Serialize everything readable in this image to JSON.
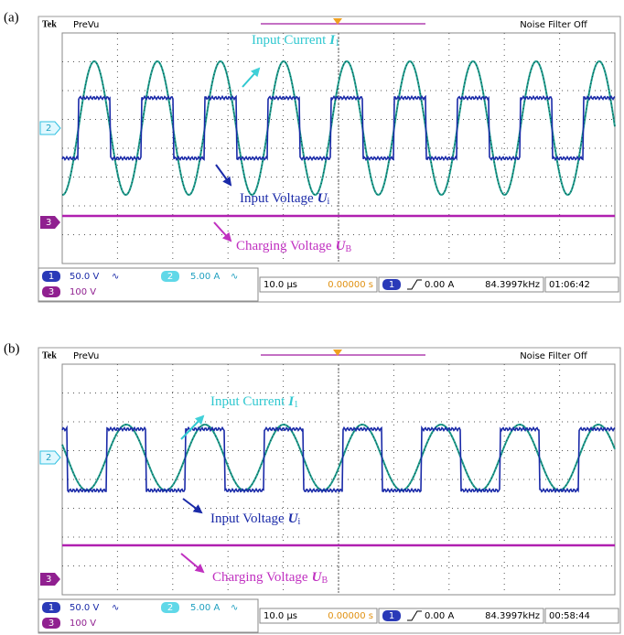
{
  "panels": [
    {
      "label": "(a)",
      "brand": "Tek",
      "mode": "PreVu",
      "filter": "Noise Filter Off",
      "current": {
        "text": "Input Current",
        "symbol": "I",
        "sub": "1"
      },
      "voltage": {
        "text": "Input Voltage",
        "symbol": "U",
        "sub": "i"
      },
      "charging": {
        "text": "Charging Voltage",
        "symbol": "U",
        "sub": "B"
      },
      "markers": [
        "2",
        "3"
      ],
      "status": {
        "ch1": "1",
        "ch1_scale": "50.0 V",
        "ch2": "2",
        "ch2_scale": "5.00 A",
        "ch3": "3",
        "ch3_scale": "100 V",
        "coupling": "∿",
        "timebase": "10.0 µs",
        "position": "0.00000 s",
        "trig_ch": "1",
        "trigger": "0.00 A",
        "freq": "84.3997kHz",
        "time": "01:06:42"
      }
    },
    {
      "label": "(b)",
      "brand": "Tek",
      "mode": "PreVu",
      "filter": "Noise Filter Off",
      "current": {
        "text": "Input Current",
        "symbol": "I",
        "sub": "1"
      },
      "voltage": {
        "text": "Input Voltage",
        "symbol": "U",
        "sub": "i"
      },
      "charging": {
        "text": "Charging Voltage",
        "symbol": "U",
        "sub": "B"
      },
      "markers": [
        "2",
        "3"
      ],
      "status": {
        "ch1": "1",
        "ch1_scale": "50.0 V",
        "ch2": "2",
        "ch2_scale": "5.00 A",
        "ch3": "3",
        "ch3_scale": "100 V",
        "coupling": "∿",
        "timebase": "10.0 µs",
        "position": "0.00000 s",
        "trig_ch": "1",
        "trigger": "0.00 A",
        "freq": "84.3997kHz",
        "time": "00:58:44"
      }
    }
  ]
}
